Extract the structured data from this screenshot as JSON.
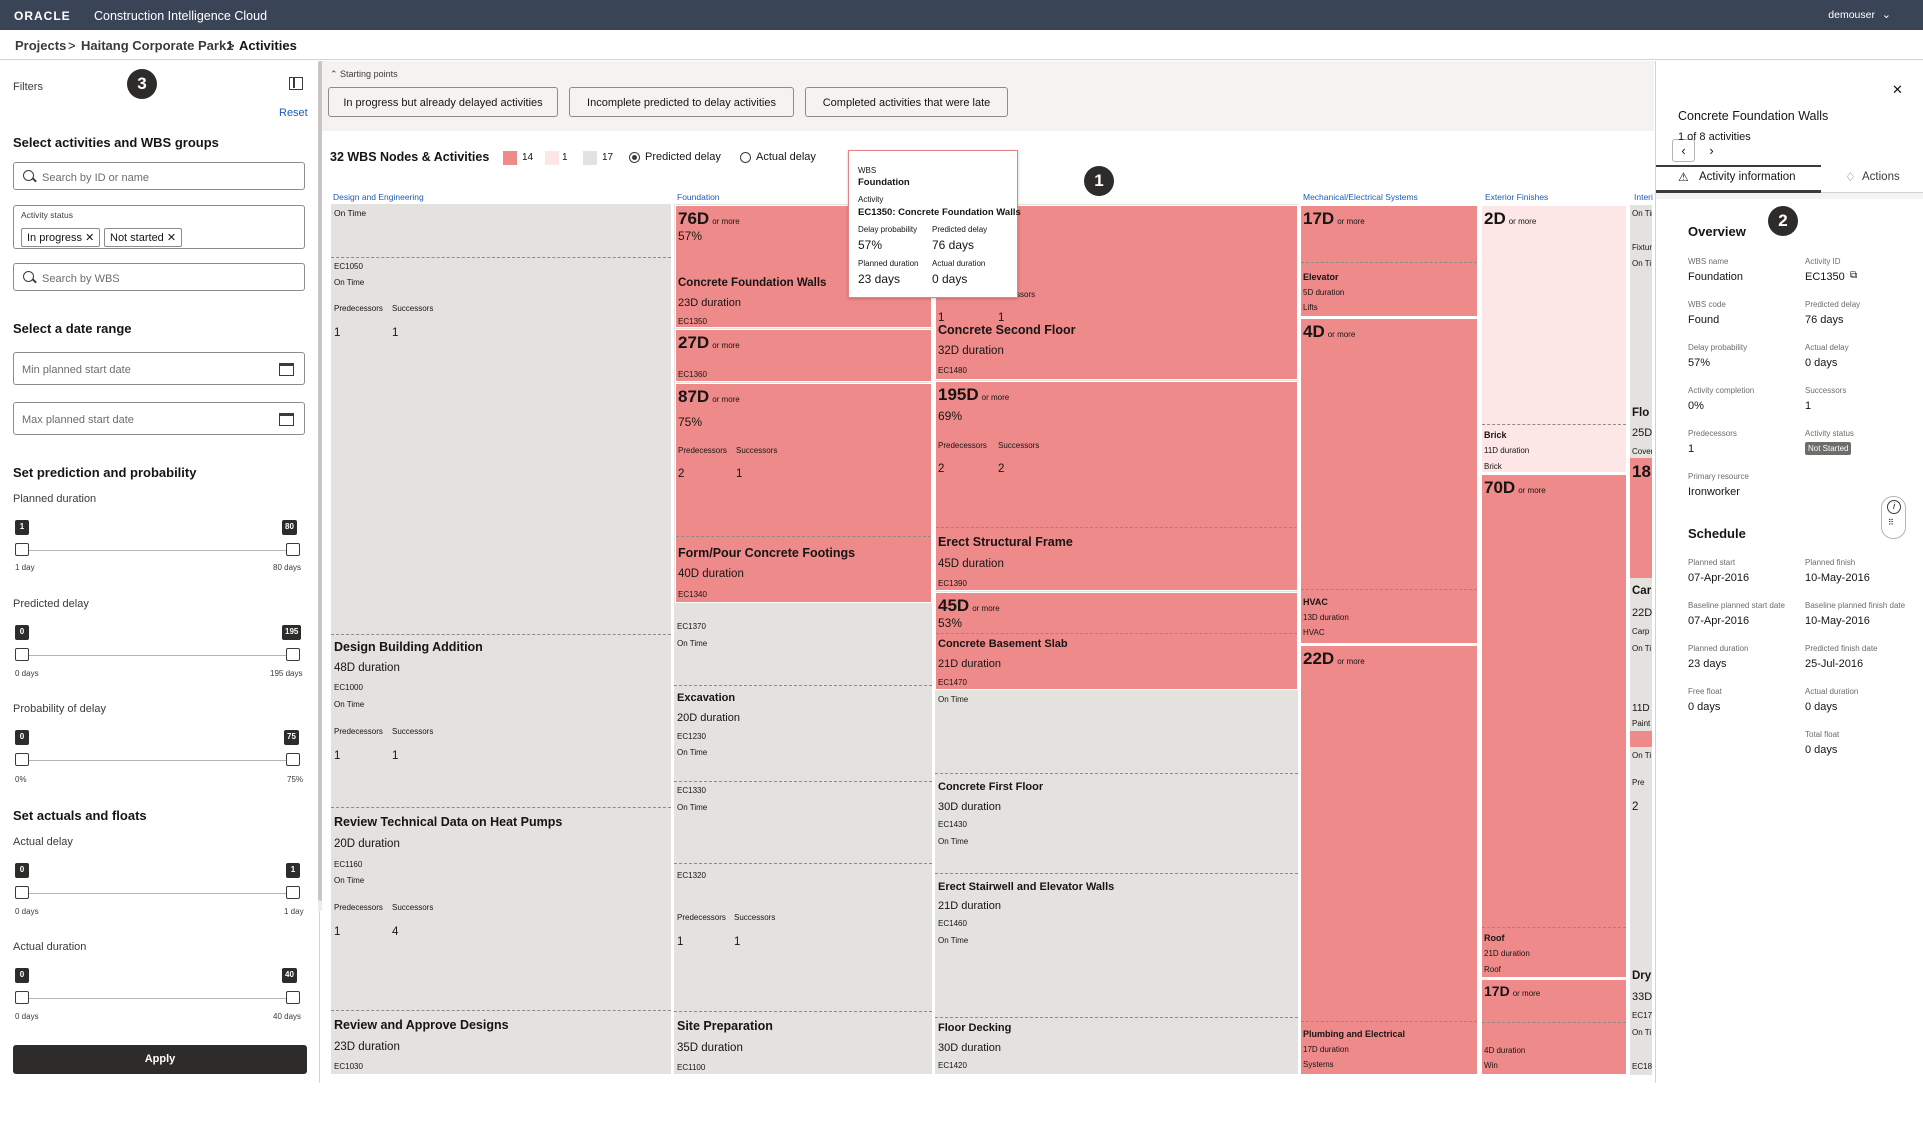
{
  "header": {
    "logo": "ORACLE",
    "app_title": "Construction Intelligence Cloud",
    "user": "demouser",
    "user_caret": "⌄"
  },
  "breadcrumb": {
    "projects": "Projects",
    "sep": ">",
    "project": "Haitang Corporate Park1",
    "current": "Activities"
  },
  "filters": {
    "title": "Filters",
    "reset": "Reset",
    "select_title": "Select activities and WBS groups",
    "search_id_ph": "Search by ID or name",
    "activity_status_label": "Activity status",
    "chip1": "In progress ✕",
    "chip2": "Not started ✕",
    "search_wbs_ph": "Search by WBS",
    "date_title": "Select a date range",
    "min_date_ph": "Min planned start date",
    "max_date_ph": "Max planned start date",
    "pred_title": "Set prediction and probability",
    "planned_duration": {
      "label": "Planned duration",
      "min": "1",
      "max": "80",
      "min_label": "1 day",
      "max_label": "80 days"
    },
    "predicted_delay": {
      "label": "Predicted delay",
      "min": "0",
      "max": "195",
      "min_label": "0 days",
      "max_label": "195 days"
    },
    "prob_delay": {
      "label": "Probability of delay",
      "min": "0",
      "max": "75",
      "min_label": "0%",
      "max_label": "75%"
    },
    "actuals_title": "Set actuals and floats",
    "actual_delay": {
      "label": "Actual delay",
      "min": "0",
      "max": "1",
      "min_label": "0 days",
      "max_label": "1 day"
    },
    "actual_duration": {
      "label": "Actual duration",
      "min": "0",
      "max": "40",
      "min_label": "0 days",
      "max_label": "40 days"
    },
    "apply": "Apply"
  },
  "starting_points": {
    "label": "Starting points",
    "btn1": "In progress but already delayed activities",
    "btn2": "Incomplete predicted to delay activities",
    "btn3": "Completed activities that were late"
  },
  "summary": {
    "count_title": "32 WBS Nodes & Activities",
    "legend": [
      "14",
      "1",
      "17"
    ],
    "legend_colors": [
      "#ef8a8a",
      "#fde6e6",
      "#e4e2de"
    ],
    "radio1": "Predicted delay",
    "radio2": "Actual delay"
  },
  "groups": {
    "g1": "Design and Engineering",
    "g2": "Foundation",
    "g4": "Mechanical/Electrical Systems",
    "g5": "Exterior Finishes",
    "g6": "Interi"
  },
  "cells": {
    "de_on_time": "On Time",
    "de_ec1050": "EC1050",
    "de_on_time2": "On Time",
    "de_pred": "Predecessors",
    "de_succ": "Successors",
    "de_p": "1",
    "de_s": "1",
    "dba_name": "Design Building Addition",
    "dba_dur": "48D duration",
    "dba_id": "EC1000",
    "dba_on": "On Time",
    "dba_pred": "Predecessors",
    "dba_succ": "Successors",
    "dba_p": "1",
    "dba_s": "1",
    "rtd_name": "Review Technical Data on Heat Pumps",
    "rtd_dur": "20D duration",
    "rtd_id": "EC1160",
    "rtd_on": "On Time",
    "rtd_pred": "Predecessors",
    "rtd_succ": "Successors",
    "rtd_p": "1",
    "rtd_s": "4",
    "rad_name": "Review and Approve Designs",
    "rad_dur": "23D duration",
    "rad_id": "EC1030",
    "f_76": "76D",
    "f_76o": "or more",
    "f_57": "57%",
    "cfw_name": "Concrete Foundation Walls",
    "cfw_dur": "23D duration",
    "cfw_id": "EC1350",
    "f_27": "27D",
    "f_27o": "or more",
    "f_ec1360": "EC1360",
    "f_87": "87D",
    "f_87o": "or more",
    "f_75": "75%",
    "f_pred": "Predecessors",
    "f_succ": "Successors",
    "f_p": "2",
    "f_s": "1",
    "fpf_name": "Form/Pour Concrete Footings",
    "fpf_dur": "40D duration",
    "fpf_id": "EC1340",
    "f_ec1370": "EC1370",
    "f_on1": "On Time",
    "exc_name": "Excavation",
    "exc_dur": "20D duration",
    "exc_id": "EC1230",
    "exc_on": "On Time",
    "f_ec1330": "EC1330",
    "f_on2": "On Time",
    "f_ec1320": "EC1320",
    "f_pred2": "Predecessors",
    "f_succ2": "Successors",
    "f_p2": "1",
    "f_s2": "1",
    "sp_name": "Site Preparation",
    "sp_dur": "35D duration",
    "sp_id": "EC1100",
    "s_pred_frag": "ssors",
    "s_p1": "1",
    "s_s1": "1",
    "csf_name": "Concrete Second Floor",
    "csf_dur": "32D duration",
    "csf_id": "EC1480",
    "s_195": "195D",
    "s_195o": "or more",
    "s_69": "69%",
    "s_pred": "Predecessors",
    "s_succ": "Successors",
    "s_p": "2",
    "s_s": "2",
    "esf_name": "Erect Structural Frame",
    "esf_dur": "45D duration",
    "esf_id": "EC1390",
    "s_45": "45D",
    "s_45o": "or more",
    "s_53": "53%",
    "cbs_name": "Concrete Basement Slab",
    "cbs_dur": "21D duration",
    "cbs_id": "EC1470",
    "s_on1": "On Time",
    "cff_name": "Concrete First Floor",
    "cff_dur": "30D duration",
    "cff_id": "EC1430",
    "s_on2": "On Time",
    "ese_name": "Erect Stairwell and Elevator Walls",
    "ese_dur": "21D duration",
    "ese_id": "EC1460",
    "s_on3": "On Time",
    "fd_name": "Floor Decking",
    "fd_dur": "30D duration",
    "fd_id": "EC1420",
    "m_17": "17D",
    "m_17o": "or more",
    "elev_name": "Elevator",
    "elev_dur": "5D duration",
    "elev_sub": "Lifts",
    "m_4": "4D",
    "m_4o": "or more",
    "hvac_name": "HVAC",
    "hvac_dur": "13D duration",
    "hvac_sub": "HVAC",
    "m_22": "22D",
    "m_22o": "or more",
    "pe_name": "Plumbing and Electrical",
    "pe_dur": "17D duration",
    "pe_sub": "Systems",
    "x_2": "2D",
    "x_2o": "or more",
    "brick_name": "Brick",
    "brick_dur": "11D duration",
    "brick_sub": "Brick",
    "x_70": "70D",
    "x_70o": "or more",
    "roof_name": "Roof",
    "roof_dur": "21D duration",
    "roof_sub": "Roof",
    "x_17": "17D",
    "x_17o": "or more",
    "x_4d": "4D duration",
    "x_win": "Win",
    "i_on": "On Time",
    "i_fix": "Fixtur",
    "i_on2": "On Ti",
    "i_flo": "Flo",
    "i_25": "25D",
    "i_cov": "Cover",
    "i_18": "18",
    "i_car": "Car",
    "i_22": "22D",
    "i_carp": "Carp",
    "i_on3": "On Ti",
    "i_11": "11D d",
    "i_paint": "Paint",
    "i_on4": "On Ti",
    "i_pre": "Pre",
    "i_2": "2",
    "i_dry": "Dry",
    "i_33": "33D",
    "i_ec17": "EC17(",
    "i_on5": "On Ti",
    "i_ec18": "EC185"
  },
  "tooltip": {
    "wbs_l": "WBS",
    "wbs_v": "Foundation",
    "act_l": "Activity",
    "act_v": "EC1350: Concrete Foundation Walls",
    "dp_l": "Delay probability",
    "dp_v": "57%",
    "pd_l": "Predicted delay",
    "pd_v": "76 days",
    "pdur_l": "Planned duration",
    "pdur_v": "23 days",
    "adur_l": "Actual duration",
    "adur_v": "0 days"
  },
  "badges": {
    "b1": "1",
    "b2": "2",
    "b3": "3"
  },
  "detail": {
    "prev": "‹",
    "next": "›",
    "close": "✕",
    "title": "Concrete Foundation Walls",
    "count": "1 of 8 activities",
    "tab1": "Activity information",
    "tab2": "Actions",
    "overview": "Overview",
    "wbs_name_l": "WBS name",
    "wbs_name_v": "Foundation",
    "act_id_l": "Activity ID",
    "act_id_v": "EC1350",
    "wbs_code_l": "WBS code",
    "wbs_code_v": "Found",
    "pred_delay_l": "Predicted delay",
    "pred_delay_v": "76 days",
    "delay_prob_l": "Delay probability",
    "delay_prob_v": "57%",
    "actual_delay_l": "Actual delay",
    "actual_delay_v": "0 days",
    "completion_l": "Activity completion",
    "completion_v": "0%",
    "successors_l": "Successors",
    "successors_v": "1",
    "predecessors_l": "Predecessors",
    "predecessors_v": "1",
    "status_l": "Activity status",
    "status_v": "Not Started",
    "resource_l": "Primary resource",
    "resource_v": "Ironworker",
    "schedule": "Schedule",
    "ps_l": "Planned start",
    "ps_v": "07-Apr-2016",
    "pf_l": "Planned finish",
    "pf_v": "10-May-2016",
    "bps_l": "Baseline planned start date",
    "bps_v": "07-Apr-2016",
    "bpf_l": "Baseline planned finish date",
    "bpf_v": "10-May-2016",
    "pdur_l": "Planned duration",
    "pdur_v": "23 days",
    "pfd_l": "Predicted finish date",
    "pfd_v": "25-Jul-2016",
    "ff_l": "Free float",
    "ff_v": "0 days",
    "ad_l": "Actual duration",
    "ad_v": "0 days",
    "tf_l": "Total float",
    "tf_v": "0 days"
  }
}
